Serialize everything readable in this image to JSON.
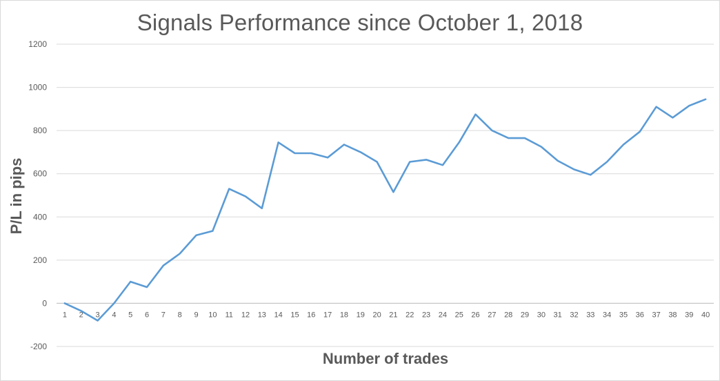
{
  "chart_data": {
    "type": "line",
    "title": "Signals Performance since October 1, 2018",
    "xlabel": "Number of trades",
    "ylabel": "P/L in pips",
    "ylim": [
      -200,
      1200
    ],
    "yticks": [
      -200,
      0,
      200,
      400,
      600,
      800,
      1000,
      1200
    ],
    "grid": true,
    "legend": "none",
    "colors": {
      "line": "#5b9bd5",
      "grid": "#d9d9d9",
      "text": "#595959"
    },
    "x": [
      1,
      2,
      3,
      4,
      5,
      6,
      7,
      8,
      9,
      10,
      11,
      12,
      13,
      14,
      15,
      16,
      17,
      18,
      19,
      20,
      21,
      22,
      23,
      24,
      25,
      26,
      27,
      28,
      29,
      30,
      31,
      32,
      33,
      34,
      35,
      36,
      37,
      38,
      39,
      40
    ],
    "series": [
      {
        "values": [
          0,
          -35,
          -80,
          0,
          100,
          75,
          175,
          230,
          315,
          335,
          530,
          495,
          440,
          745,
          695,
          695,
          675,
          735,
          700,
          655,
          515,
          655,
          665,
          640,
          745,
          875,
          800,
          765,
          765,
          725,
          660,
          620,
          595,
          655,
          735,
          795,
          910,
          860,
          915,
          945
        ]
      }
    ]
  }
}
